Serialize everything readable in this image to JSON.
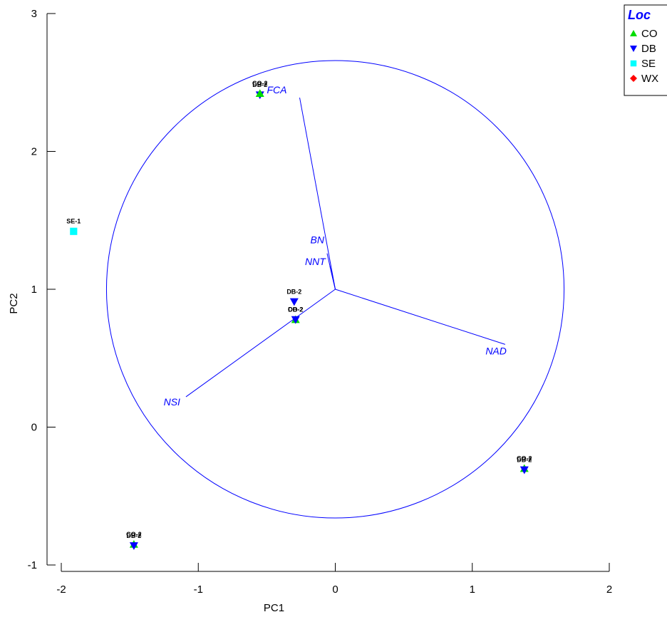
{
  "chart_data": {
    "type": "scatter",
    "xlabel": "PC1",
    "ylabel": "PC2",
    "xlim": [
      -2,
      2
    ],
    "ylim": [
      -1,
      3
    ],
    "x_ticks": [
      -2,
      -1,
      0,
      1,
      2
    ],
    "y_ticks": [
      -1,
      0,
      1,
      2,
      3
    ],
    "x_tick_labels": [
      "-2",
      "-1",
      "0",
      "1",
      "2"
    ],
    "y_tick_labels": [
      "-1",
      "0",
      "1",
      "2",
      "3"
    ],
    "grid": false,
    "legend": {
      "title": "Loc",
      "placement": "top-right",
      "entries": [
        {
          "label": "CO",
          "marker": "triangle-up",
          "color": "#00dd00"
        },
        {
          "label": "DB",
          "marker": "triangle-down",
          "color": "#0000ff"
        },
        {
          "label": "SE",
          "marker": "square",
          "color": "#00ffff"
        },
        {
          "label": "WX",
          "marker": "diamond",
          "color": "#ff0000"
        }
      ]
    },
    "points": [
      {
        "group": "DB",
        "x": -0.55,
        "y": 2.41,
        "label": "DB-2"
      },
      {
        "group": "CO",
        "x": -0.55,
        "y": 2.42,
        "label": "CO-2"
      },
      {
        "group": "SE",
        "x": -1.91,
        "y": 1.42,
        "label": "SE-1"
      },
      {
        "group": "DB",
        "x": -0.3,
        "y": 0.91,
        "label": "DB-2"
      },
      {
        "group": "CO",
        "x": -0.29,
        "y": 0.78,
        "label": "CO-2"
      },
      {
        "group": "DB",
        "x": -0.29,
        "y": 0.78,
        "label": "DB-2"
      },
      {
        "group": "CO",
        "x": 1.38,
        "y": -0.3,
        "label": "CO-2"
      },
      {
        "group": "DB",
        "x": 1.38,
        "y": -0.31,
        "label": "DB-2"
      },
      {
        "group": "CO",
        "x": -1.47,
        "y": -0.85,
        "label": "CO-2"
      },
      {
        "group": "DB",
        "x": -1.47,
        "y": -0.86,
        "label": "DB-2"
      }
    ],
    "circle": {
      "center": [
        0,
        1
      ],
      "radius": 1.67,
      "color": "#0000ff"
    },
    "vectors": [
      {
        "name": "FCA",
        "x": -0.26,
        "y": 2.39
      },
      {
        "name": "BN",
        "x": -0.06,
        "y": 1.26
      },
      {
        "name": "NNT",
        "x": -0.04,
        "y": 1.17
      },
      {
        "name": "NAD",
        "x": 1.24,
        "y": 0.6
      },
      {
        "name": "NSI",
        "x": -1.09,
        "y": 0.22
      }
    ],
    "vector_origin": [
      0,
      1
    ],
    "vector_color": "#0000ff"
  }
}
